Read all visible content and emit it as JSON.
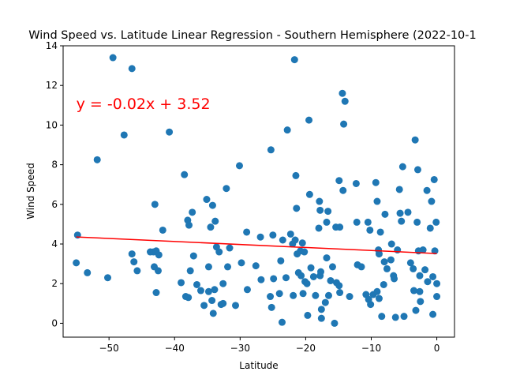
{
  "chart_data": {
    "type": "scatter",
    "title": "Wind Speed vs. Latitude Linear Regression - Southern Hemisphere (2022-10-1",
    "xlabel": "Latitude",
    "ylabel": "Wind Speed",
    "xlim": [
      -57,
      2.7
    ],
    "ylim": [
      -0.7,
      14
    ],
    "xticks": [
      -50,
      -40,
      -30,
      -20,
      -10,
      0
    ],
    "yticks": [
      0,
      2,
      4,
      6,
      8,
      10,
      12,
      14
    ],
    "grid": false,
    "legend": "none",
    "point_color": "#1f77b4",
    "line_color": "#ff0000",
    "annotation": {
      "text": "y = -0.02x + 3.52",
      "x": -55,
      "y": 11.1,
      "color": "#ff0000"
    },
    "regression": {
      "slope": -0.0152,
      "intercept": 3.52,
      "x_range": [
        -55,
        0
      ]
    },
    "points": [
      [
        -54.8,
        4.45
      ],
      [
        -55.0,
        3.05
      ],
      [
        -53.3,
        2.55
      ],
      [
        -51.8,
        8.25
      ],
      [
        -50.2,
        2.3
      ],
      [
        -49.4,
        13.4
      ],
      [
        -47.7,
        9.5
      ],
      [
        -46.5,
        12.85
      ],
      [
        -46.5,
        3.5
      ],
      [
        -46.2,
        3.1
      ],
      [
        -45.7,
        2.65
      ],
      [
        -43.7,
        3.6
      ],
      [
        -43.2,
        3.6
      ],
      [
        -43.1,
        2.85
      ],
      [
        -43.0,
        6.0
      ],
      [
        -42.8,
        3.65
      ],
      [
        -42.8,
        1.55
      ],
      [
        -42.5,
        2.65
      ],
      [
        -42.4,
        3.45
      ],
      [
        -41.8,
        4.7
      ],
      [
        -40.8,
        9.65
      ],
      [
        -39.0,
        2.05
      ],
      [
        -38.5,
        7.5
      ],
      [
        -38.3,
        1.35
      ],
      [
        -38.0,
        5.2
      ],
      [
        -37.9,
        1.3
      ],
      [
        -37.8,
        4.95
      ],
      [
        -37.6,
        2.65
      ],
      [
        -37.3,
        5.6
      ],
      [
        -37.1,
        3.4
      ],
      [
        -36.6,
        1.95
      ],
      [
        -36.0,
        1.65
      ],
      [
        -35.5,
        0.9
      ],
      [
        -35.1,
        6.25
      ],
      [
        -34.8,
        2.85
      ],
      [
        -34.8,
        1.6
      ],
      [
        -34.5,
        4.85
      ],
      [
        -34.3,
        1.15
      ],
      [
        -34.2,
        5.95
      ],
      [
        -34.1,
        0.5
      ],
      [
        -33.9,
        1.7
      ],
      [
        -33.8,
        5.15
      ],
      [
        -33.6,
        3.85
      ],
      [
        -33.2,
        3.6
      ],
      [
        -32.9,
        0.95
      ],
      [
        -32.6,
        1.0
      ],
      [
        -32.6,
        2.0
      ],
      [
        -32.1,
        6.8
      ],
      [
        -31.9,
        2.85
      ],
      [
        -31.6,
        3.8
      ],
      [
        -30.7,
        0.9
      ],
      [
        -30.1,
        7.95
      ],
      [
        -29.8,
        3.05
      ],
      [
        -29.0,
        4.6
      ],
      [
        -28.9,
        1.7
      ],
      [
        -27.6,
        2.9
      ],
      [
        -26.9,
        4.35
      ],
      [
        -26.8,
        2.2
      ],
      [
        -25.4,
        1.35
      ],
      [
        -25.3,
        8.75
      ],
      [
        -25.2,
        0.8
      ],
      [
        -25.0,
        4.45
      ],
      [
        -24.9,
        2.25
      ],
      [
        -24.0,
        1.5
      ],
      [
        -23.8,
        3.15
      ],
      [
        -23.6,
        0.05
      ],
      [
        -23.5,
        4.2
      ],
      [
        -23.0,
        2.3
      ],
      [
        -22.8,
        9.75
      ],
      [
        -22.3,
        4.5
      ],
      [
        -22.0,
        4.0
      ],
      [
        -21.9,
        1.4
      ],
      [
        -21.7,
        13.3
      ],
      [
        -21.6,
        4.2
      ],
      [
        -21.5,
        7.45
      ],
      [
        -21.4,
        5.8
      ],
      [
        -21.3,
        3.5
      ],
      [
        -21.1,
        2.55
      ],
      [
        -20.8,
        3.65
      ],
      [
        -20.7,
        2.4
      ],
      [
        -20.5,
        4.05
      ],
      [
        -20.4,
        1.5
      ],
      [
        -20.2,
        3.6
      ],
      [
        -20.1,
        2.1
      ],
      [
        -19.8,
        2.0
      ],
      [
        -19.7,
        0.4
      ],
      [
        -19.5,
        10.25
      ],
      [
        -19.4,
        6.5
      ],
      [
        -19.2,
        2.8
      ],
      [
        -18.8,
        2.35
      ],
      [
        -18.5,
        1.4
      ],
      [
        -18.0,
        4.8
      ],
      [
        -17.9,
        6.15
      ],
      [
        -17.8,
        5.7
      ],
      [
        -17.8,
        2.4
      ],
      [
        -17.7,
        2.6
      ],
      [
        -17.6,
        0.7
      ],
      [
        -17.6,
        0.25
      ],
      [
        -17.0,
        1.05
      ],
      [
        -16.8,
        5.1
      ],
      [
        -16.8,
        3.3
      ],
      [
        -16.6,
        5.65
      ],
      [
        -16.5,
        1.4
      ],
      [
        -16.2,
        2.15
      ],
      [
        -15.9,
        2.85
      ],
      [
        -15.6,
        0.0
      ],
      [
        -15.4,
        4.85
      ],
      [
        -15.3,
        2.05
      ],
      [
        -14.9,
        7.2
      ],
      [
        -14.9,
        1.9
      ],
      [
        -14.8,
        4.85
      ],
      [
        -14.8,
        1.55
      ],
      [
        -14.4,
        11.6
      ],
      [
        -14.3,
        6.7
      ],
      [
        -14.2,
        10.05
      ],
      [
        -14.0,
        11.2
      ],
      [
        -13.3,
        1.35
      ],
      [
        -12.3,
        7.05
      ],
      [
        -12.2,
        5.1
      ],
      [
        -12.1,
        2.95
      ],
      [
        -11.5,
        2.85
      ],
      [
        -10.8,
        1.45
      ],
      [
        -10.5,
        5.1
      ],
      [
        -10.4,
        1.2
      ],
      [
        -10.2,
        4.7
      ],
      [
        -10.1,
        0.95
      ],
      [
        -9.7,
        1.45
      ],
      [
        -9.3,
        7.1
      ],
      [
        -9.1,
        6.15
      ],
      [
        -9.1,
        1.6
      ],
      [
        -8.9,
        3.7
      ],
      [
        -8.8,
        3.5
      ],
      [
        -8.8,
        1.25
      ],
      [
        -8.6,
        4.6
      ],
      [
        -8.4,
        0.35
      ],
      [
        -8.1,
        1.95
      ],
      [
        -8.0,
        3.1
      ],
      [
        -7.9,
        5.5
      ],
      [
        -7.6,
        2.75
      ],
      [
        -7.0,
        3.2
      ],
      [
        -6.9,
        4.0
      ],
      [
        -6.6,
        2.4
      ],
      [
        -6.5,
        2.25
      ],
      [
        -6.3,
        0.3
      ],
      [
        -6.0,
        3.7
      ],
      [
        -5.7,
        6.75
      ],
      [
        -5.6,
        5.55
      ],
      [
        -5.4,
        5.15
      ],
      [
        -5.2,
        7.9
      ],
      [
        -5.0,
        0.35
      ],
      [
        -4.4,
        5.6
      ],
      [
        -4.0,
        3.05
      ],
      [
        -3.6,
        2.75
      ],
      [
        -3.5,
        1.65
      ],
      [
        -3.3,
        9.25
      ],
      [
        -3.2,
        0.65
      ],
      [
        -3.0,
        5.1
      ],
      [
        -2.9,
        7.75
      ],
      [
        -2.8,
        3.65
      ],
      [
        -2.6,
        2.4
      ],
      [
        -2.6,
        1.6
      ],
      [
        -2.5,
        1.1
      ],
      [
        -2.1,
        3.7
      ],
      [
        -1.8,
        2.7
      ],
      [
        -1.5,
        6.7
      ],
      [
        -1.4,
        2.1
      ],
      [
        -1.0,
        4.8
      ],
      [
        -0.8,
        6.15
      ],
      [
        -0.6,
        2.35
      ],
      [
        -0.6,
        0.45
      ],
      [
        -0.4,
        7.25
      ],
      [
        -0.3,
        3.65
      ],
      [
        -0.1,
        5.1
      ],
      [
        0.0,
        2.0
      ],
      [
        0.0,
        1.35
      ]
    ]
  }
}
